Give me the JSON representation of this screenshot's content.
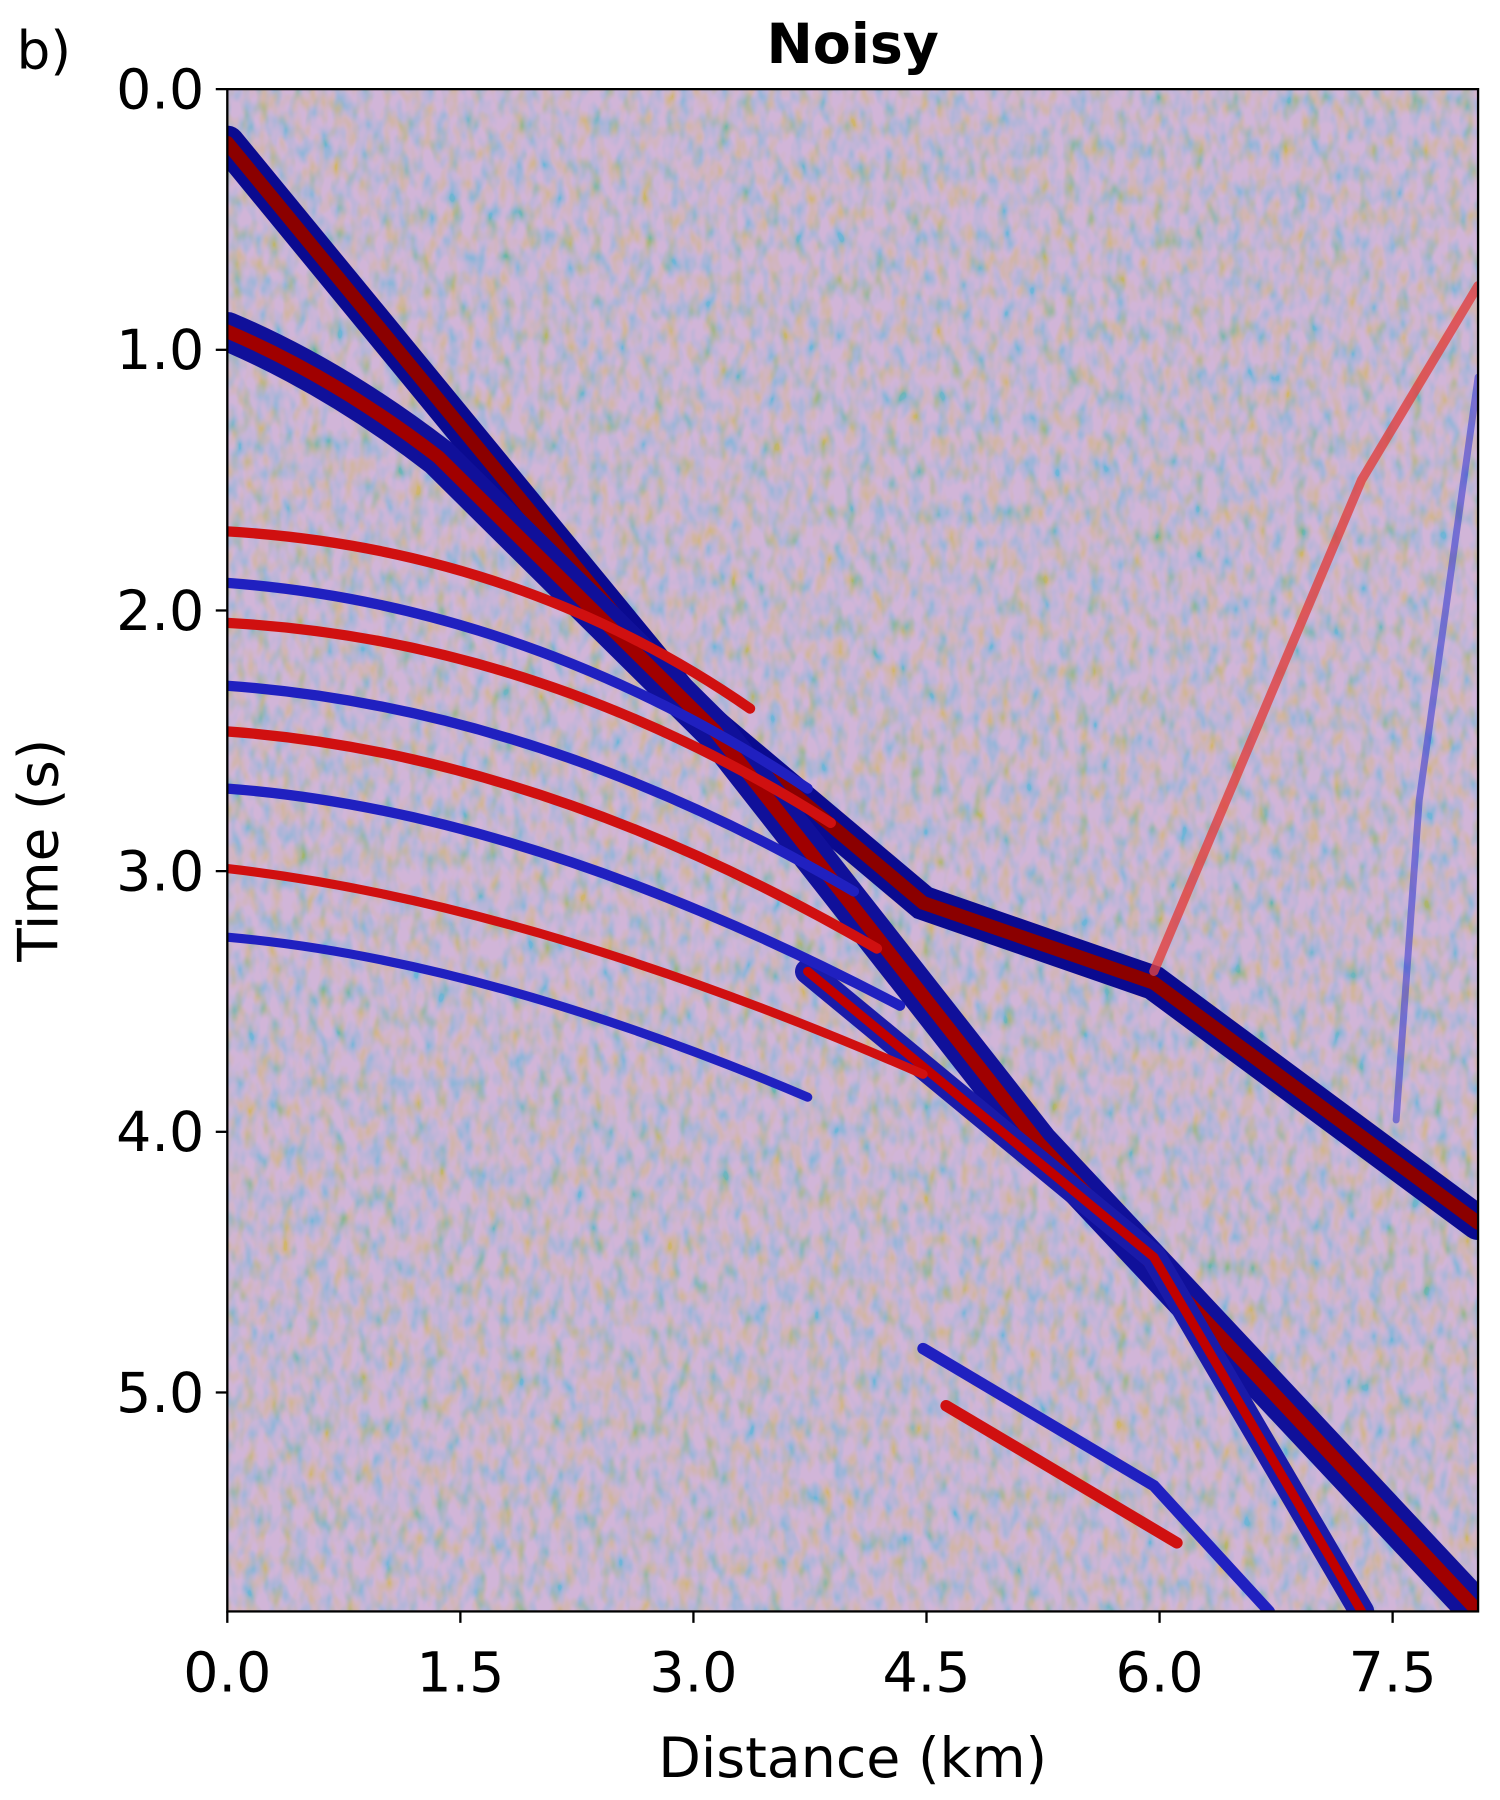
{
  "chart_data": {
    "type": "image",
    "panel_label": "b)",
    "title": "Noisy",
    "xlabel": "Distance (km)",
    "ylabel": "Time (s)",
    "xlim": [
      0,
      8.05
    ],
    "ylim": [
      5.84,
      0
    ],
    "xticks": [
      {
        "value": 0,
        "label": "0.0"
      },
      1.5,
      {
        "value": 3,
        "label": "3.0"
      },
      4.5,
      {
        "value": 6,
        "label": "6.0"
      },
      7.5
    ],
    "yticks": [
      {
        "value": 0,
        "label": "0.0"
      },
      {
        "value": 1,
        "label": "1.0"
      },
      {
        "value": 2,
        "label": "2.0"
      },
      {
        "value": 3,
        "label": "3.0"
      },
      {
        "value": 4,
        "label": "4.0"
      },
      {
        "value": 5,
        "label": "5.0"
      }
    ]
  }
}
